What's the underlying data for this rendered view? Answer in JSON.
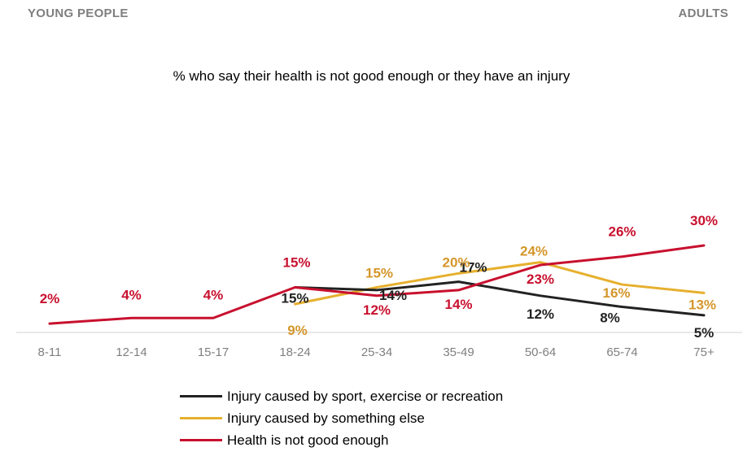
{
  "header": {
    "left": "YOUNG PEOPLE",
    "right": "ADULTS"
  },
  "chart_data": {
    "type": "line",
    "title": "% who say their health is not good enough or they have an injury",
    "categories": [
      "8-11",
      "12-14",
      "15-17",
      "18-24",
      "25-34",
      "35-49",
      "50-64",
      "65-74",
      "75+"
    ],
    "ylim": [
      0,
      32
    ],
    "grid": false,
    "legend_position": "bottom",
    "series": [
      {
        "name": "Injury caused by sport, exercise or recreation",
        "color": "#222222",
        "values": [
          null,
          null,
          null,
          15,
          14,
          17,
          12,
          8,
          5
        ],
        "labels": [
          "",
          "",
          "",
          "15%",
          "14%",
          "17%",
          "12%",
          "8%",
          "5%"
        ]
      },
      {
        "name": "Injury caused by something else",
        "color": "#e6b02e",
        "label_color": "#d4962a",
        "values": [
          null,
          null,
          null,
          9,
          15,
          20,
          24,
          16,
          13
        ],
        "labels": [
          "",
          "",
          "",
          "9%",
          "15%",
          "20%",
          "24%",
          "16%",
          "13%"
        ]
      },
      {
        "name": "Health is not good enough",
        "color": "#c8102e",
        "values": [
          2,
          4,
          4,
          15,
          12,
          14,
          23,
          26,
          30
        ],
        "labels": [
          "2%",
          "4%",
          "4%",
          "15%",
          "12%",
          "14%",
          "23%",
          "26%",
          "30%"
        ]
      }
    ]
  }
}
